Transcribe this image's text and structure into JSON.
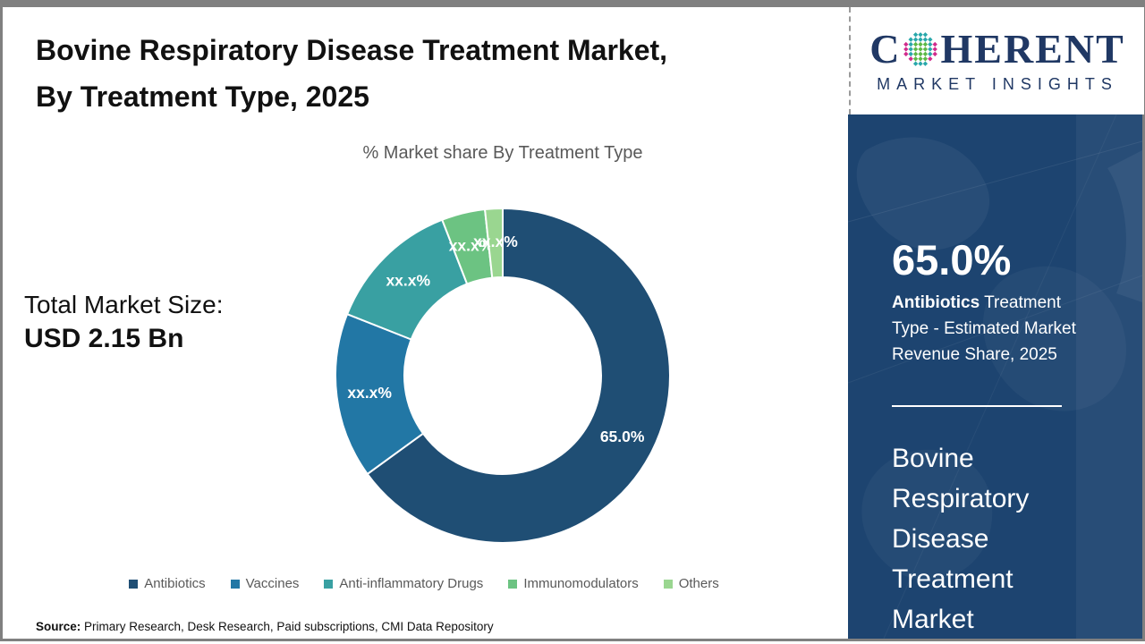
{
  "header": {
    "title_line1": "Bovine Respiratory Disease Treatment Market,",
    "title_line2": "By Treatment Type, 2025",
    "subtitle": "% Market share By Treatment Type"
  },
  "total_market": {
    "label": "Total Market Size:",
    "value": "USD 2.15 Bn"
  },
  "chart_data": {
    "type": "pie",
    "subtype": "donut",
    "title": "% Market share By Treatment Type",
    "categories": [
      "Antibiotics",
      "Vaccines",
      "Anti-inflammatory Drugs",
      "Immunomodulators",
      "Others"
    ],
    "values": [
      65.0,
      16.0,
      13.1,
      4.2,
      1.7
    ],
    "display_labels": [
      "65.0%",
      "xx.x%",
      "xx.x%",
      "xx.x%",
      "xx.x%"
    ],
    "colors": [
      "#1F4E74",
      "#2277A5",
      "#39A0A2",
      "#6CC382",
      "#9AD690"
    ],
    "start_angle_deg": 0,
    "direction": "clockwise",
    "donut_hole_ratio": 0.59,
    "legend_position": "bottom",
    "label_color": "#ffffff"
  },
  "side_panel": {
    "stat_value": "65.0%",
    "stat_bold": "Antibiotics",
    "stat_rest": " Treatment Type - Estimated Market Revenue Share, 2025",
    "market_name": "Bovine Respiratory Disease Treatment Market",
    "background_color": "#1d4470"
  },
  "logo": {
    "brand_left": "C",
    "brand_right": "HERENT",
    "tagline": "MARKET INSIGHTS",
    "brand_color": "#203864",
    "globe_colors": {
      "teal": "#29A8AB",
      "green": "#5CB947",
      "pink": "#D12A8C"
    }
  },
  "source": {
    "label": "Source:",
    "text": " Primary Research, Desk Research, Paid subscriptions, CMI Data Repository"
  }
}
